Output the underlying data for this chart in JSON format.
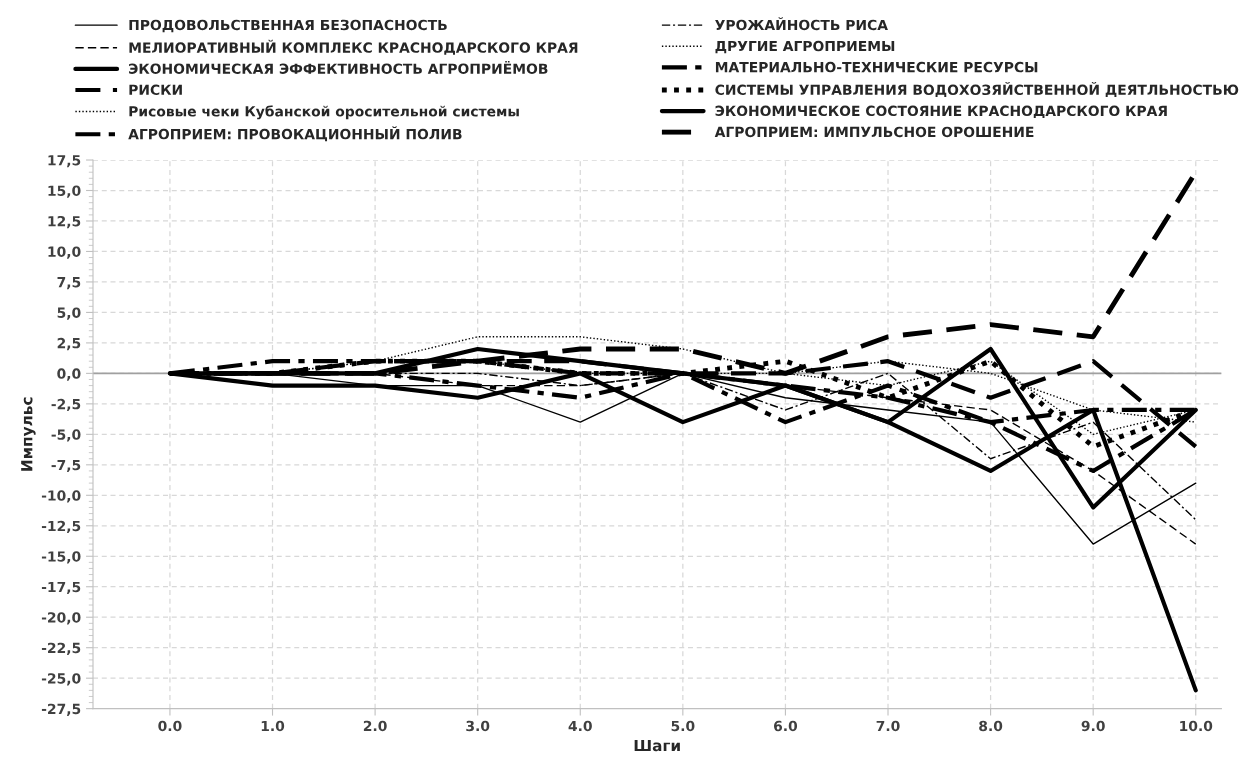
{
  "chart_data": {
    "type": "line",
    "xlabel": "Шаги",
    "ylabel": "Импульс",
    "x": [
      0,
      1,
      2,
      3,
      4,
      5,
      6,
      7,
      8,
      9,
      10
    ],
    "xlim": [
      -0.75,
      10.25
    ],
    "xticks": [
      {
        "value": 0,
        "label": "0.0"
      },
      {
        "value": 1,
        "label": "1.0"
      },
      {
        "value": 2,
        "label": "2.0"
      },
      {
        "value": 3,
        "label": "3.0"
      },
      {
        "value": 4,
        "label": "4.0"
      },
      {
        "value": 5,
        "label": "5.0"
      },
      {
        "value": 6,
        "label": "6.0"
      },
      {
        "value": 7,
        "label": "7.0"
      },
      {
        "value": 8,
        "label": "8.0"
      },
      {
        "value": 9,
        "label": "9.0"
      },
      {
        "value": 10,
        "label": "10.0"
      }
    ],
    "ylim": [
      -27.5,
      17.5
    ],
    "yticks": [
      {
        "value": 17.5,
        "label": "17,5"
      },
      {
        "value": 15,
        "label": "15,0"
      },
      {
        "value": 12.5,
        "label": "12,5"
      },
      {
        "value": 10,
        "label": "10,0"
      },
      {
        "value": 7.5,
        "label": "7,5"
      },
      {
        "value": 5,
        "label": "5,0"
      },
      {
        "value": 2.5,
        "label": "2,5"
      },
      {
        "value": 0,
        "label": "0,0"
      },
      {
        "value": -2.5,
        "label": "-2,5"
      },
      {
        "value": -5,
        "label": "-5,0"
      },
      {
        "value": -7.5,
        "label": "-7,5"
      },
      {
        "value": -10,
        "label": "-10,0"
      },
      {
        "value": -12.5,
        "label": "-12,5"
      },
      {
        "value": -15,
        "label": "-15,0"
      },
      {
        "value": -17.5,
        "label": "-17,5"
      },
      {
        "value": -20,
        "label": "-20,0"
      },
      {
        "value": -22.5,
        "label": "-22,5"
      },
      {
        "value": -25,
        "label": "-25,0"
      },
      {
        "value": -27.5,
        "label": "-27,5"
      }
    ],
    "grid": true,
    "legend": "top",
    "marker": "none",
    "ref_lines": [
      {
        "axis": "y",
        "value": 0,
        "color": "#a0a0a0"
      }
    ],
    "series": [
      {
        "name": "ПРОДОВОЛЬСТВЕННАЯ БЕЗОПАСНОСТЬ",
        "color": "#000000",
        "line_style": "solid",
        "values": [
          0,
          0,
          -1,
          -1,
          -4,
          0,
          -2,
          -3,
          -4,
          -14,
          -9
        ]
      },
      {
        "name": "МЕЛИОРАТИВНЫЙ КОМПЛЕКС КРАСНОДАРСКОГО КРАЯ",
        "color": "#000000",
        "line_style": "dashed",
        "values": [
          0,
          0,
          0,
          -1,
          -1,
          0,
          -1,
          -2,
          -3,
          -8,
          -14
        ]
      },
      {
        "name": "ЭКОНОМИЧЕСКАЯ ЭФФЕКТИВНОСТЬ АГРОПРИЁМОВ",
        "color": "#000000",
        "line_style": "solid",
        "values": [
          0,
          0,
          0,
          2,
          1,
          0,
          -1,
          -4,
          2,
          -11,
          -3
        ]
      },
      {
        "name": "РИСКИ",
        "color": "#000000",
        "line_style": "dashed",
        "values": [
          0,
          0,
          1,
          1,
          1,
          0,
          0,
          1,
          -2,
          1,
          -6
        ]
      },
      {
        "name": "Рисовые чеки Кубанской оросительной системы",
        "color": "#000000",
        "line_style": "dotted",
        "values": [
          0,
          0,
          1,
          1,
          0,
          0,
          0,
          -1,
          1,
          -5,
          -3
        ]
      },
      {
        "name": "АГРОПРИЕМ: ПРОВОКАЦИОННЫЙ ПОЛИВ",
        "color": "#000000",
        "line_style": "dashdot",
        "values": [
          0,
          0,
          0,
          -1,
          -2,
          0,
          -4,
          -1,
          -4,
          -8,
          -3
        ]
      },
      {
        "name": "УРОЖАЙНОСТЬ РИСА",
        "color": "#000000",
        "line_style": "dashdot",
        "values": [
          0,
          0,
          0,
          0,
          -1,
          0,
          -3,
          0,
          -7,
          -4,
          -12
        ]
      },
      {
        "name": "ДРУГИЕ АГРОПРИЕМЫ",
        "color": "#000000",
        "line_style": "dotted",
        "values": [
          0,
          0,
          1,
          3,
          3,
          2,
          0,
          1,
          0,
          -3,
          -4
        ]
      },
      {
        "name": "МАТЕРИАЛЬНО-ТЕХНИЧЕСКИЕ РЕСУРСЫ",
        "color": "#000000",
        "line_style": "dashdot",
        "values": [
          0,
          1,
          1,
          1,
          0,
          0,
          -1,
          -2,
          -4,
          -3,
          -3
        ]
      },
      {
        "name": "СИСТЕМЫ УПРАВЛЕНИЯ ВОДОХОЗЯЙСТВЕННОЙ ДЕЯТЛЬНОСТЬЮ",
        "color": "#000000",
        "line_style": "dotted",
        "values": [
          0,
          0,
          1,
          1,
          0,
          0,
          1,
          -2,
          1,
          -6,
          -3
        ]
      },
      {
        "name": "ЭКОНОМИЧЕСКОЕ СОСТОЯНИЕ КРАСНОДАРСКОГО КРАЯ",
        "color": "#000000",
        "line_style": "solid",
        "values": [
          0,
          -1,
          -1,
          -2,
          0,
          -4,
          -1,
          -4,
          -8,
          -3,
          -26
        ]
      },
      {
        "name": "АГРОПРИЕМ: ИМПУЛЬСНОЕ ОРОШЕНИЕ",
        "color": "#000000",
        "line_style": "dashed",
        "values": [
          0,
          0,
          0,
          1,
          2,
          2,
          0,
          3,
          4,
          3,
          16.5
        ]
      }
    ]
  }
}
